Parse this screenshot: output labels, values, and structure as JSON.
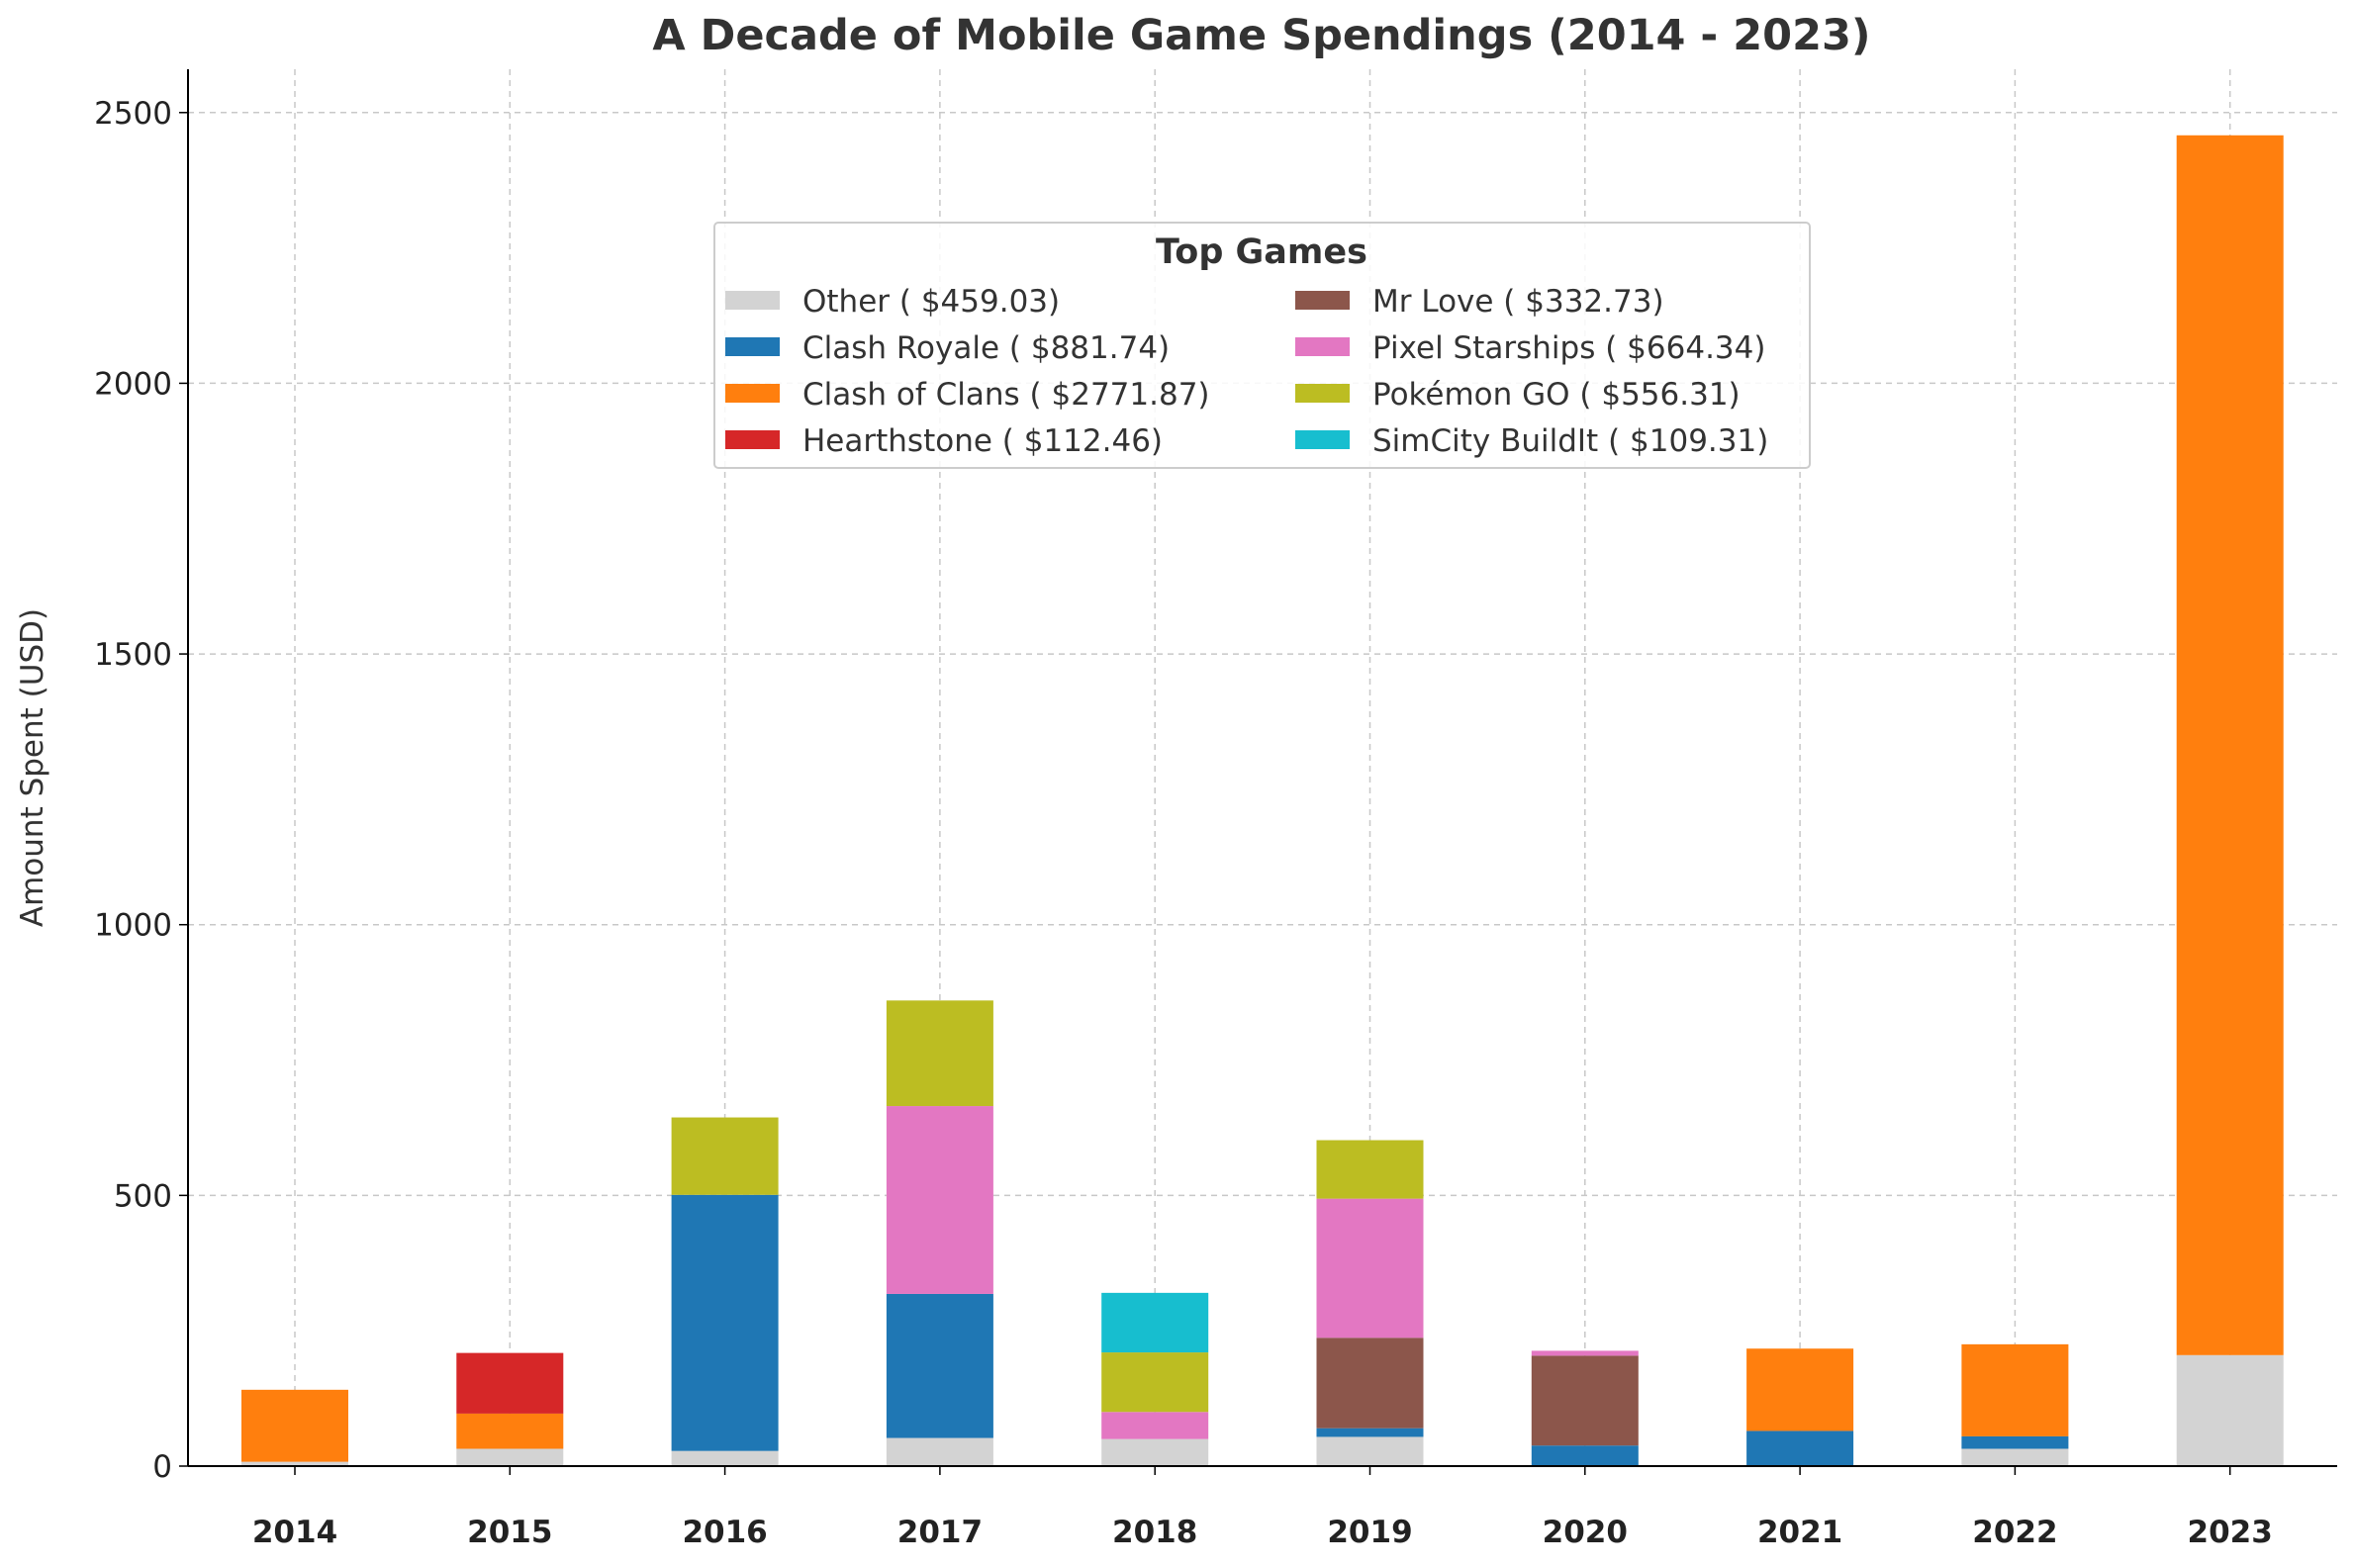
{
  "chart_data": {
    "type": "bar",
    "stacked": true,
    "title": "A Decade of Mobile Game Spendings (2014 - 2023)",
    "xlabel": "",
    "ylabel": "Amount Spent (USD)",
    "ylim": [
      0,
      2580
    ],
    "yticks": [
      0,
      500,
      1000,
      1500,
      2000,
      2500
    ],
    "grid": true,
    "categories": [
      "2014",
      "2015",
      "2016",
      "2017",
      "2018",
      "2019",
      "2020",
      "2021",
      "2022",
      "2023"
    ],
    "legend": {
      "title": "Top Games",
      "placement": "upper-center",
      "columns": 2
    },
    "series": [
      {
        "name": "Other",
        "total_label": "Other ( $459.03)",
        "color": "#d3d3d3",
        "values": [
          8,
          32,
          28,
          52,
          50,
          54,
          0,
          0,
          32,
          205
        ]
      },
      {
        "name": "Clash Royale",
        "total_label": "Clash Royale ( $881.74)",
        "color": "#1f77b4",
        "values": [
          0,
          0,
          473,
          266,
          0,
          16,
          38,
          65,
          23,
          0
        ]
      },
      {
        "name": "Clash of Clans",
        "total_label": "Clash of Clans ( $2771.87)",
        "color": "#ff7f0e",
        "values": [
          133,
          65,
          0,
          0,
          0,
          0,
          0,
          152,
          170,
          2253
        ]
      },
      {
        "name": "Hearthstone",
        "total_label": "Hearthstone ( $112.46)",
        "color": "#d62728",
        "values": [
          0,
          112,
          0,
          0,
          0,
          0,
          0,
          0,
          0,
          0
        ]
      },
      {
        "name": "Mr Love",
        "total_label": "Mr Love ( $332.73)",
        "color": "#8c564b",
        "values": [
          0,
          0,
          0,
          0,
          0,
          167,
          166,
          0,
          0,
          0
        ]
      },
      {
        "name": "Pixel Starships",
        "total_label": "Pixel Starships ( $664.34)",
        "color": "#e377c2",
        "values": [
          0,
          0,
          0,
          347,
          50,
          257,
          9,
          0,
          0,
          0
        ]
      },
      {
        "name": "Pokémon GO",
        "total_label": "Pokémon GO ( $556.31)",
        "color": "#bcbd22",
        "values": [
          0,
          0,
          143,
          195,
          110,
          108,
          0,
          0,
          0,
          0
        ]
      },
      {
        "name": "SimCity BuildIt",
        "total_label": "SimCity BuildIt ( $109.31)",
        "color": "#17becf",
        "values": [
          0,
          0,
          0,
          0,
          110,
          0,
          0,
          0,
          0,
          0
        ]
      }
    ]
  }
}
